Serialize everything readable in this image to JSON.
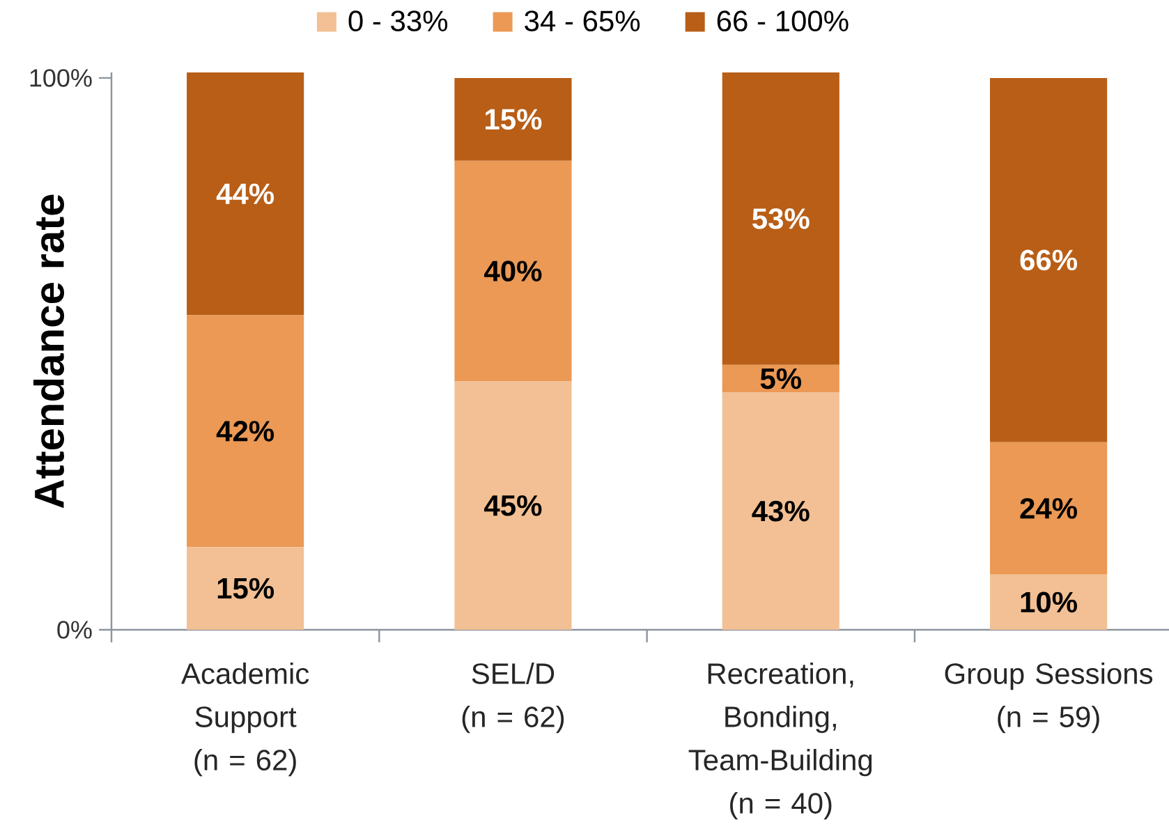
{
  "chart_data": {
    "type": "bar",
    "stacked": true,
    "ylabel": "Attendance rate",
    "categories": [
      "Academic Support\n(n = 62)",
      "SEL/D\n(n = 62)",
      "Recreation, Bonding, Team-Building\n(n = 40)",
      "Group Sessions\n(n = 59)"
    ],
    "series": [
      {
        "name": "0 - 33%",
        "color": "#f2c094",
        "values": [
          15,
          45,
          43,
          10
        ],
        "value_labels": [
          "15%",
          "45%",
          "43%",
          "10%"
        ]
      },
      {
        "name": "34 - 65%",
        "color": "#eb9955",
        "values": [
          42,
          40,
          5,
          24
        ],
        "value_labels": [
          "42%",
          "40%",
          "5%",
          "24%"
        ]
      },
      {
        "name": "66 - 100%",
        "color": "#b85e17",
        "values": [
          44,
          15,
          53,
          66
        ],
        "value_labels": [
          "44%",
          "15%",
          "53%",
          "66%"
        ]
      }
    ],
    "ylim": [
      0,
      101
    ],
    "yticks": [
      {
        "value": 0,
        "label": "0%"
      },
      {
        "value": 100,
        "label": "100%"
      }
    ],
    "legend": "top"
  }
}
